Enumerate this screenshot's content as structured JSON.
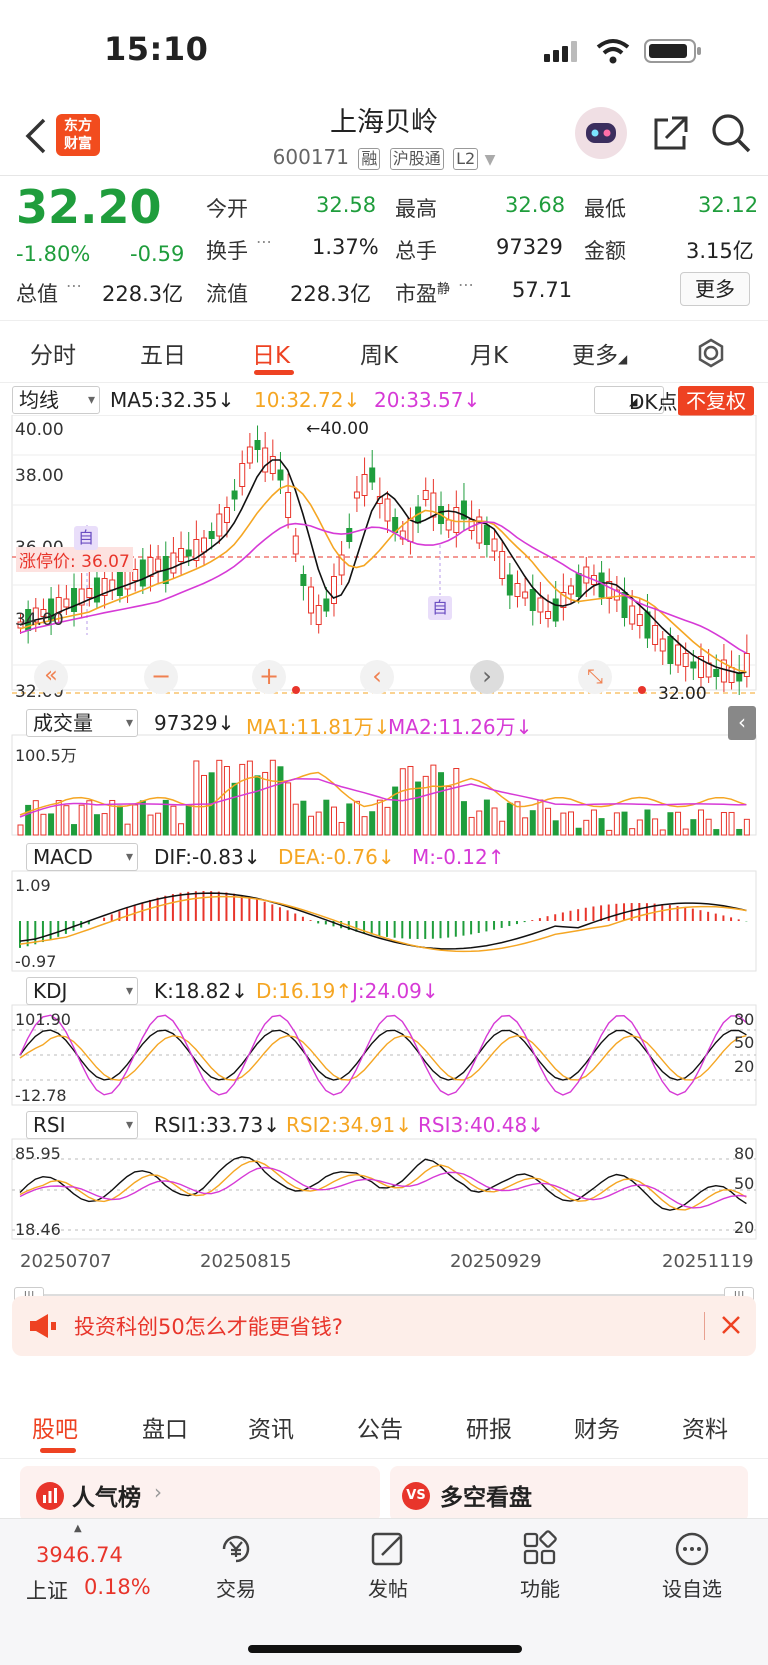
{
  "status": {
    "time": "15:10"
  },
  "header": {
    "title": "上海贝岭",
    "code": "600171",
    "tags": [
      "融",
      "沪股通",
      "L2"
    ],
    "logo_text": [
      "东方",
      "财富"
    ]
  },
  "quote": {
    "price": "32.20",
    "change_pct": "-1.80%",
    "change": "-0.59",
    "open_label": "今开",
    "open": "32.58",
    "high_label": "最高",
    "high": "32.68",
    "low_label": "最低",
    "low": "32.12",
    "turnover_label": "换手",
    "turnover": "1.37%",
    "volume_label": "总手",
    "volume": "97329",
    "amount_label": "金额",
    "amount": "3.15亿",
    "total_value_label": "总值",
    "total_value": "228.3亿",
    "float_value_label": "流值",
    "float_value": "228.3亿",
    "pe_label": "市盈",
    "pe_sup": "静",
    "pe": "57.71",
    "more_button": "更多"
  },
  "period_tabs": [
    "分时",
    "五日",
    "日K",
    "周K",
    "月K",
    "更多"
  ],
  "active_tab": "日K",
  "ma_row": {
    "selector": "均线",
    "ma5": "MA5:32.35↓",
    "ma10": "10:32.72↓",
    "ma20": "20:33.57↓",
    "dk": "DK点",
    "fq": "不复权"
  },
  "kline": {
    "y_labels": [
      "40.00",
      "38.00",
      "36.00",
      "34.00",
      "32.00"
    ],
    "limit_label": "涨停价: 36.07",
    "max_label": "←40.00",
    "min_label": "32.00",
    "marker": "自",
    "nav_buttons": [
      "«",
      "−",
      "+",
      "‹",
      "›",
      "⤡"
    ]
  },
  "volume_row": {
    "selector": "成交量",
    "v": "97329↓",
    "ma1": "MA1:11.81万↓",
    "ma2": "MA2:11.26万↓",
    "top_label": "100.5万"
  },
  "macd_row": {
    "selector": "MACD",
    "dif": "DIF:-0.83↓",
    "dea": "DEA:-0.76↓",
    "m": "M:-0.12↑",
    "top_label": "1.09",
    "bottom_label": "-0.97"
  },
  "kdj_row": {
    "selector": "KDJ",
    "k": "K:18.82↓",
    "d": "D:16.19↑",
    "j": "J:24.09↓",
    "top_label": "101.90",
    "bottom_label": "-12.78",
    "levels": [
      "80",
      "50",
      "20"
    ]
  },
  "rsi_row": {
    "selector": "RSI",
    "r1": "RSI1:33.73↓",
    "r2": "RSI2:34.91↓",
    "r3": "RSI3:40.48↓",
    "top_label": "85.95",
    "bottom_label": "18.46",
    "levels": [
      "80",
      "50",
      "20"
    ]
  },
  "dates": [
    "20250707",
    "20250815",
    "20250929",
    "20251119"
  ],
  "banner": {
    "text": "投资科创50怎么才能更省钱?"
  },
  "bottom_tabs": [
    "股吧",
    "盘口",
    "资讯",
    "公告",
    "研报",
    "财务",
    "资料"
  ],
  "cards": [
    "人气榜",
    "多空看盘"
  ],
  "bottom_bar": {
    "index_value": "3946.74",
    "index_name": "上证",
    "index_change": "0.18%",
    "items": [
      "交易",
      "发帖",
      "功能",
      "设自选"
    ]
  },
  "colors": {
    "up": "#e8352b",
    "down": "#1f9d3c",
    "accent": "#ee4222",
    "ma10": "#f5a623",
    "ma20": "#d63ad6"
  }
}
